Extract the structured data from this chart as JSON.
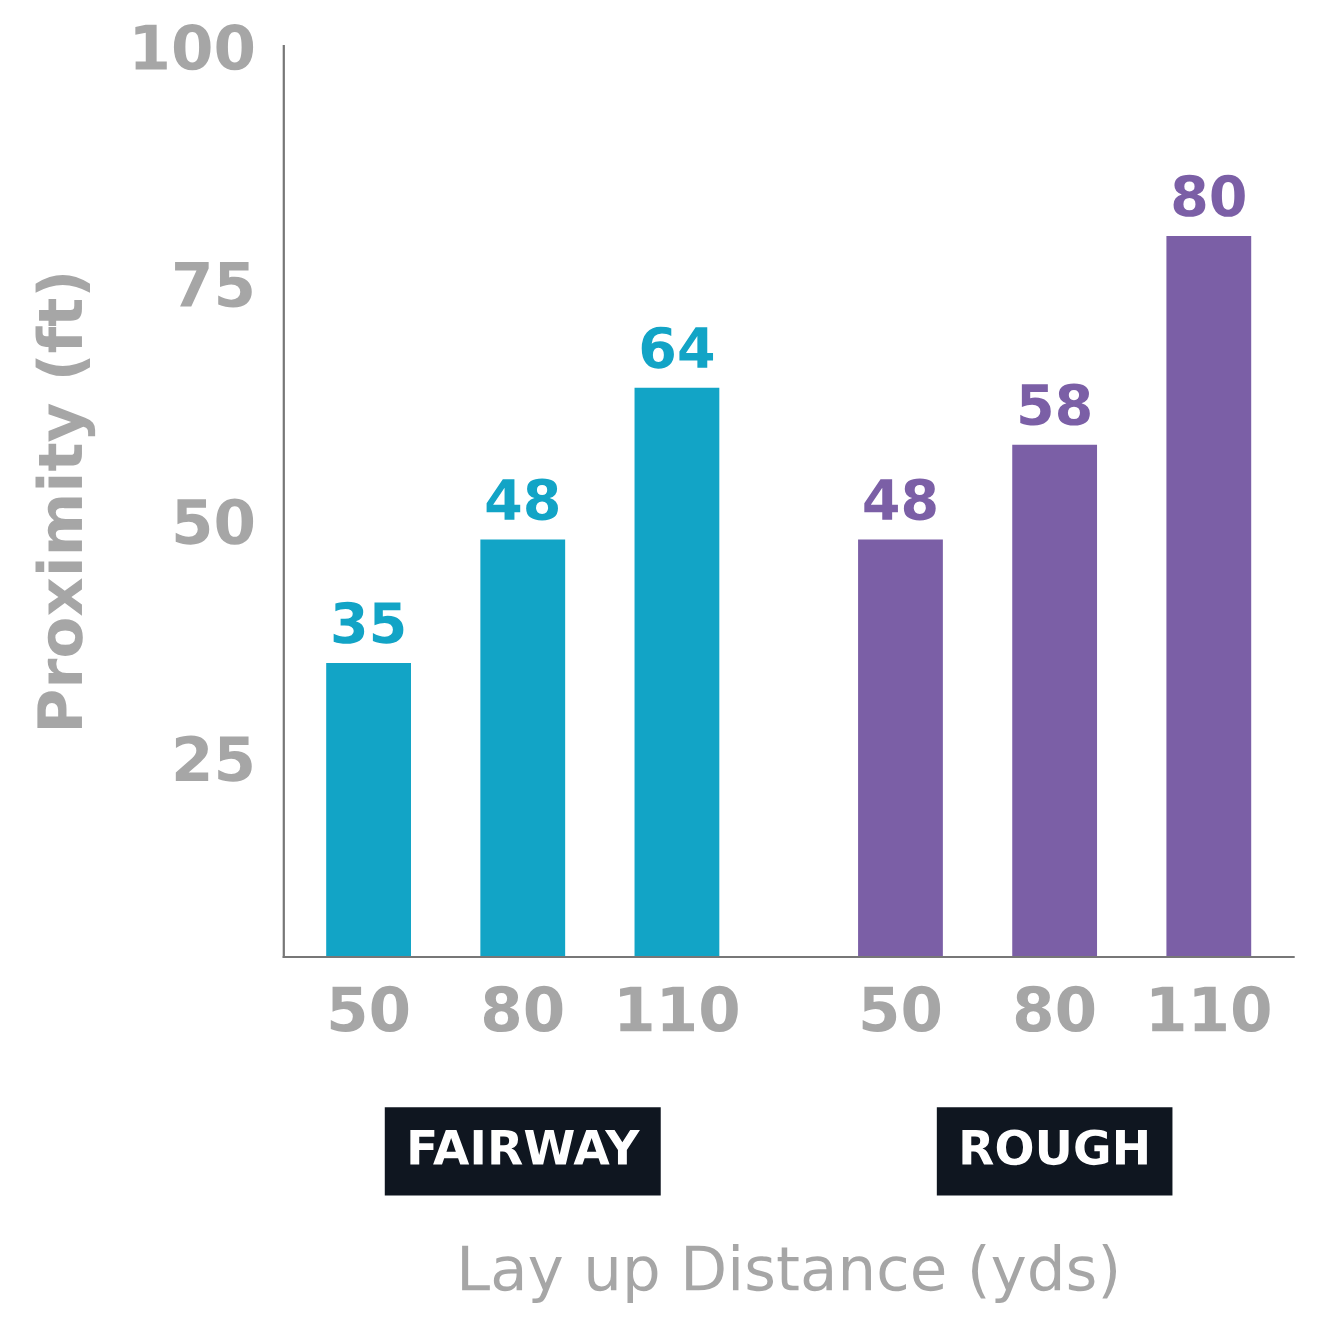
{
  "chart_data": {
    "type": "bar",
    "xlabel": "Lay up Distance (yds)",
    "ylabel": "Proximity (ft)",
    "categories": [
      "50",
      "80",
      "110",
      "50",
      "80",
      "110"
    ],
    "series": [
      {
        "name": "FAIRWAY",
        "color": "#12a4c6",
        "values": [
          35,
          48,
          64,
          null,
          null,
          null
        ]
      },
      {
        "name": "ROUGH",
        "color": "#7b5fa6",
        "values": [
          null,
          null,
          null,
          48,
          58,
          80
        ]
      }
    ],
    "ylim": [
      4,
      100
    ],
    "yticks": [
      25,
      50,
      75,
      100
    ],
    "data_labels": true,
    "grid": false,
    "legend": false
  }
}
